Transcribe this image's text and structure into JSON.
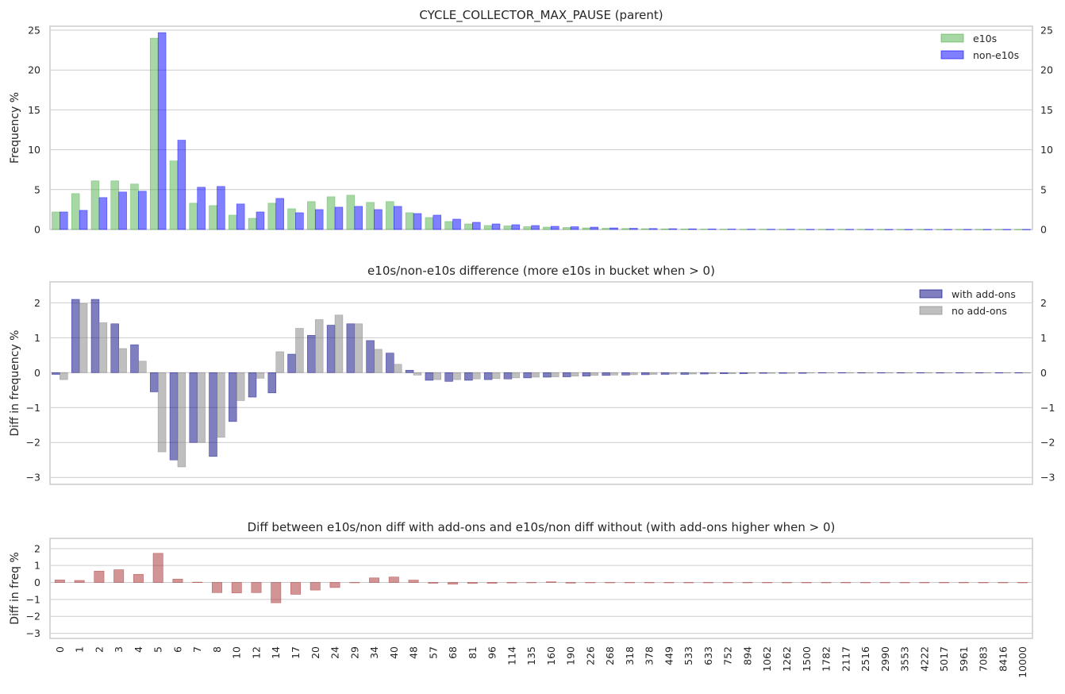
{
  "chart_data": [
    {
      "type": "bar",
      "title": "CYCLE_COLLECTOR_MAX_PAUSE (parent)",
      "ylabel": "Frequency %",
      "ylim": [
        0,
        25.5
      ],
      "yticks": [
        "0",
        "5",
        "10",
        "15",
        "20",
        "25"
      ],
      "grid": true,
      "legend_position": "top-right",
      "categories": [
        "0",
        "1",
        "2",
        "3",
        "4",
        "5",
        "6",
        "7",
        "8",
        "10",
        "12",
        "14",
        "17",
        "20",
        "24",
        "29",
        "34",
        "40",
        "48",
        "57",
        "68",
        "81",
        "96",
        "114",
        "135",
        "160",
        "190",
        "226",
        "268",
        "318",
        "378",
        "449",
        "533",
        "633",
        "752",
        "894",
        "1062",
        "1262",
        "1500",
        "1782",
        "2117",
        "2516",
        "2990",
        "3553",
        "4222",
        "5017",
        "5961",
        "7083",
        "8416",
        "10000"
      ],
      "series": [
        {
          "name": "e10s",
          "color": "#4daf4a",
          "values": [
            2.2,
            4.5,
            6.1,
            6.1,
            5.7,
            24.0,
            8.6,
            3.3,
            3.0,
            1.8,
            1.4,
            3.3,
            2.6,
            3.5,
            4.1,
            4.3,
            3.4,
            3.5,
            2.1,
            1.5,
            1.0,
            0.7,
            0.5,
            0.45,
            0.35,
            0.3,
            0.25,
            0.2,
            0.15,
            0.12,
            0.1,
            0.08,
            0.06,
            0.05,
            0.04,
            0.03,
            0.03,
            0.02,
            0.02,
            0.02,
            0.02,
            0.02,
            0.01,
            0.01,
            0.01,
            0.01,
            0.01,
            0.01,
            0.01,
            0.01
          ]
        },
        {
          "name": "non-e10s",
          "color": "#0000ff",
          "values": [
            2.2,
            2.4,
            4.0,
            4.7,
            4.8,
            24.7,
            11.2,
            5.3,
            5.4,
            3.2,
            2.2,
            3.9,
            2.1,
            2.5,
            2.8,
            2.9,
            2.5,
            2.9,
            2.0,
            1.8,
            1.3,
            0.9,
            0.7,
            0.6,
            0.5,
            0.4,
            0.35,
            0.3,
            0.2,
            0.15,
            0.12,
            0.1,
            0.08,
            0.06,
            0.05,
            0.04,
            0.03,
            0.03,
            0.02,
            0.02,
            0.02,
            0.02,
            0.01,
            0.01,
            0.01,
            0.01,
            0.01,
            0.01,
            0.01,
            0.01
          ]
        }
      ]
    },
    {
      "type": "bar",
      "title": "e10s/non-e10s difference (more e10s in bucket when > 0)",
      "ylabel": "Diff in frequency %",
      "ylim": [
        -3.2,
        2.6
      ],
      "yticks": [
        "−3",
        "−2",
        "−1",
        "0",
        "1",
        "2"
      ],
      "grid": true,
      "legend_position": "top-right",
      "series": [
        {
          "name": "with add-ons",
          "color": "#000080",
          "values": [
            -0.05,
            2.1,
            2.1,
            1.4,
            0.8,
            -0.55,
            -2.5,
            -2.0,
            -2.4,
            -1.4,
            -0.7,
            -0.58,
            0.53,
            1.07,
            1.36,
            1.4,
            0.92,
            0.56,
            0.07,
            -0.22,
            -0.25,
            -0.22,
            -0.2,
            -0.18,
            -0.15,
            -0.13,
            -0.12,
            -0.1,
            -0.08,
            -0.07,
            -0.06,
            -0.05,
            -0.05,
            -0.04,
            -0.03,
            -0.03,
            -0.02,
            -0.02,
            -0.02,
            -0.01,
            -0.01,
            -0.01,
            -0.01,
            -0.01,
            -0.01,
            -0.01,
            -0.01,
            -0.01,
            -0.01,
            -0.01
          ]
        },
        {
          "name": "no add-ons",
          "color": "#808080",
          "values": [
            -0.2,
            1.98,
            1.43,
            0.69,
            0.33,
            -2.27,
            -2.7,
            -2.0,
            -1.85,
            -0.8,
            -0.16,
            0.6,
            1.27,
            1.52,
            1.65,
            1.4,
            0.67,
            0.24,
            -0.07,
            -0.2,
            -0.2,
            -0.18,
            -0.17,
            -0.15,
            -0.13,
            -0.12,
            -0.1,
            -0.08,
            -0.07,
            -0.06,
            -0.05,
            -0.04,
            -0.04,
            -0.03,
            -0.03,
            -0.02,
            -0.02,
            -0.02,
            -0.01,
            -0.01,
            -0.01,
            -0.01,
            -0.01,
            -0.01,
            -0.01,
            -0.01,
            -0.01,
            -0.01,
            -0.01,
            -0.01
          ]
        }
      ]
    },
    {
      "type": "bar",
      "title": "Diff between e10s/non diff with add-ons and e10s/non diff without (with add-ons higher when > 0)",
      "ylabel": "Diff in freq %",
      "ylim": [
        -3.3,
        2.6
      ],
      "yticks": [
        "−3",
        "−2",
        "−1",
        "0",
        "1",
        "2"
      ],
      "grid": true,
      "series": [
        {
          "name": "",
          "color": "#a52a2a",
          "values": [
            0.15,
            0.12,
            0.67,
            0.75,
            0.48,
            1.72,
            0.2,
            0.02,
            -0.6,
            -0.62,
            -0.6,
            -1.2,
            -0.7,
            -0.45,
            -0.3,
            0.0,
            0.27,
            0.32,
            0.14,
            -0.05,
            -0.1,
            -0.06,
            -0.05,
            -0.03,
            -0.02,
            0.04,
            -0.04,
            -0.02,
            -0.02,
            -0.01,
            -0.01,
            -0.01,
            -0.01,
            -0.01,
            -0.01,
            -0.01,
            -0.01,
            -0.01,
            -0.01,
            -0.01,
            -0.01,
            -0.01,
            -0.01,
            -0.01,
            -0.01,
            -0.01,
            -0.01,
            -0.01,
            -0.01,
            -0.01
          ]
        }
      ]
    }
  ]
}
